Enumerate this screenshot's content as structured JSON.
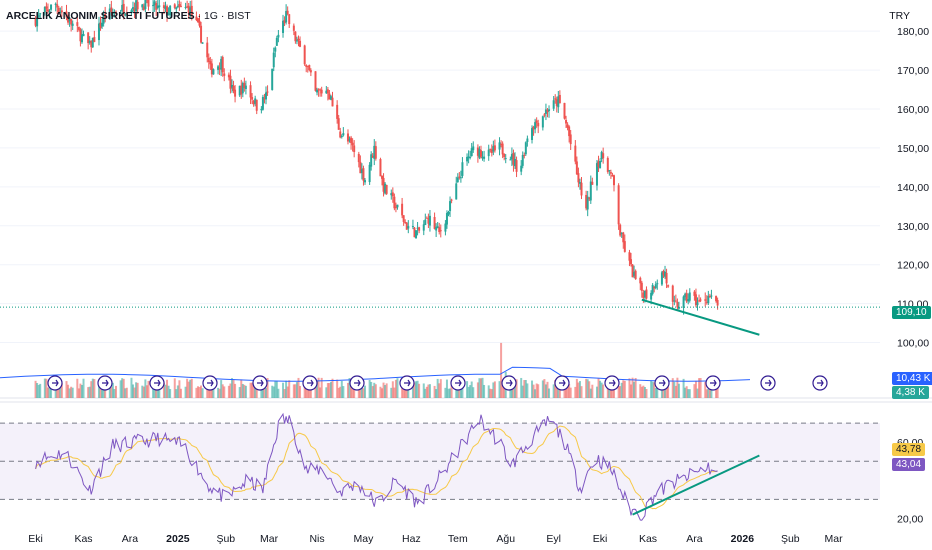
{
  "header": {
    "symbol_name": "ARCELIK ANONIM SIRKETI FUTURES",
    "interval": "1G",
    "exchange": "BIST",
    "currency": "TRY"
  },
  "badges": {
    "last_price": "109,10",
    "volume_ma": "10,43 K",
    "volume": "4,38 K",
    "rsi_ma": "43,78",
    "rsi": "43,04"
  },
  "colors": {
    "up": "#26a69a",
    "down": "#ef5350",
    "volume_ma": "#2962ff",
    "rsi_line": "#7e57c2",
    "rsi_ma": "#f7c948",
    "trendline": "#089981",
    "rsi_band": "#ede7f6"
  },
  "chart_data": [
    {
      "type": "candlestick",
      "title": "",
      "y_axis_ticks": [
        "100,00",
        "110,00",
        "120,00",
        "130,00",
        "140,00",
        "150,00",
        "160,00",
        "170,00",
        "180,00"
      ],
      "x_axis_ticks": [
        "Eki",
        "Kas",
        "Ara",
        "2025",
        "Şub",
        "Mar",
        "Nis",
        "May",
        "Haz",
        "Tem",
        "Ağu",
        "Eyl",
        "Eki",
        "Kas",
        "Ara",
        "2026",
        "Şub",
        "Mar"
      ],
      "ylim": [
        95,
        188
      ],
      "last_price": 109.1,
      "close_path": [
        [
          "2024-10-01",
          183
        ],
        [
          "2024-10-14",
          187
        ],
        [
          "2024-10-28",
          180
        ],
        [
          "2024-11-05",
          176
        ],
        [
          "2024-11-15",
          184
        ],
        [
          "2024-11-28",
          186
        ],
        [
          "2024-12-10",
          187
        ],
        [
          "2024-12-25",
          185
        ],
        [
          "2025-01-08",
          186
        ],
        [
          "2025-01-15",
          180
        ],
        [
          "2025-01-22",
          170
        ],
        [
          "2025-01-29",
          172
        ],
        [
          "2025-02-06",
          164
        ],
        [
          "2025-02-14",
          166
        ],
        [
          "2025-02-22",
          160
        ],
        [
          "2025-02-28",
          164
        ],
        [
          "2025-03-06",
          178
        ],
        [
          "2025-03-12",
          184
        ],
        [
          "2025-03-18",
          178
        ],
        [
          "2025-03-24",
          173
        ],
        [
          "2025-03-31",
          164
        ],
        [
          "2025-04-08",
          165
        ],
        [
          "2025-04-16",
          154
        ],
        [
          "2025-04-24",
          150
        ],
        [
          "2025-05-02",
          142
        ],
        [
          "2025-05-08",
          150
        ],
        [
          "2025-05-14",
          140
        ],
        [
          "2025-05-22",
          135
        ],
        [
          "2025-05-29",
          130
        ],
        [
          "2025-06-05",
          128
        ],
        [
          "2025-06-12",
          132
        ],
        [
          "2025-06-19",
          128
        ],
        [
          "2025-06-26",
          135
        ],
        [
          "2025-07-04",
          145
        ],
        [
          "2025-07-12",
          150
        ],
        [
          "2025-07-20",
          148
        ],
        [
          "2025-07-28",
          150
        ],
        [
          "2025-08-04",
          148
        ],
        [
          "2025-08-10",
          144
        ],
        [
          "2025-08-16",
          155
        ],
        [
          "2025-08-22",
          157
        ],
        [
          "2025-08-28",
          160
        ],
        [
          "2025-09-04",
          162
        ],
        [
          "2025-09-10",
          155
        ],
        [
          "2025-09-16",
          143
        ],
        [
          "2025-09-22",
          134
        ],
        [
          "2025-09-28",
          146
        ],
        [
          "2025-10-04",
          148
        ],
        [
          "2025-10-10",
          140
        ],
        [
          "2025-10-14",
          128
        ],
        [
          "2025-10-20",
          120
        ],
        [
          "2025-10-26",
          114
        ],
        [
          "2025-11-01",
          112
        ],
        [
          "2025-11-06",
          116
        ],
        [
          "2025-11-12",
          118
        ],
        [
          "2025-11-16",
          109
        ],
        [
          "2025-11-22",
          110
        ],
        [
          "2025-11-28",
          112
        ],
        [
          "2025-12-04",
          110
        ],
        [
          "2025-12-10",
          112
        ],
        [
          "2025-12-16",
          109.1
        ]
      ],
      "trendline": [
        [
          "2025-10-28",
          111
        ],
        [
          "2026-01-12",
          102
        ]
      ]
    },
    {
      "type": "bar",
      "title": "",
      "series_label": "Volume",
      "volume_ma_last": "10,43 K",
      "volume_last": "4,38 K",
      "spikes": [
        [
          "2025-07-29",
          19
        ],
        [
          "2025-08-01",
          9
        ],
        [
          "2025-10-22",
          7
        ],
        [
          "2025-11-20",
          7
        ]
      ]
    },
    {
      "type": "line",
      "title": "",
      "series_label": "RSI",
      "ylim": [
        15,
        80
      ],
      "y_axis_ticks": [
        "20,00",
        "60,00"
      ],
      "bands": [
        30,
        50,
        70
      ],
      "rsi_last": 43.04,
      "rsi_ma_last": 43.78,
      "rsi_path": [
        [
          "2024-10-01",
          50
        ],
        [
          "2024-10-20",
          55
        ],
        [
          "2024-11-05",
          35
        ],
        [
          "2024-11-20",
          58
        ],
        [
          "2024-12-05",
          60
        ],
        [
          "2024-12-20",
          62
        ],
        [
          "2025-01-05",
          58
        ],
        [
          "2025-01-20",
          38
        ],
        [
          "2025-02-01",
          30
        ],
        [
          "2025-02-15",
          40
        ],
        [
          "2025-02-25",
          35
        ],
        [
          "2025-03-08",
          72
        ],
        [
          "2025-03-15",
          71
        ],
        [
          "2025-03-25",
          45
        ],
        [
          "2025-04-05",
          46
        ],
        [
          "2025-04-15",
          34
        ],
        [
          "2025-04-28",
          38
        ],
        [
          "2025-05-10",
          27
        ],
        [
          "2025-05-22",
          40
        ],
        [
          "2025-06-05",
          28
        ],
        [
          "2025-06-20",
          42
        ],
        [
          "2025-07-05",
          60
        ],
        [
          "2025-07-15",
          72
        ],
        [
          "2025-07-28",
          60
        ],
        [
          "2025-08-05",
          48
        ],
        [
          "2025-08-18",
          62
        ],
        [
          "2025-08-30",
          72
        ],
        [
          "2025-09-08",
          60
        ],
        [
          "2025-09-18",
          36
        ],
        [
          "2025-09-28",
          52
        ],
        [
          "2025-10-08",
          46
        ],
        [
          "2025-10-20",
          25
        ],
        [
          "2025-10-28",
          22
        ],
        [
          "2025-11-05",
          32
        ],
        [
          "2025-11-15",
          38
        ],
        [
          "2025-11-22",
          40
        ],
        [
          "2025-12-02",
          44
        ],
        [
          "2025-12-10",
          47
        ],
        [
          "2025-12-16",
          43.04
        ]
      ],
      "trendline": [
        [
          "2025-10-22",
          22
        ],
        [
          "2026-01-12",
          53
        ]
      ]
    }
  ]
}
